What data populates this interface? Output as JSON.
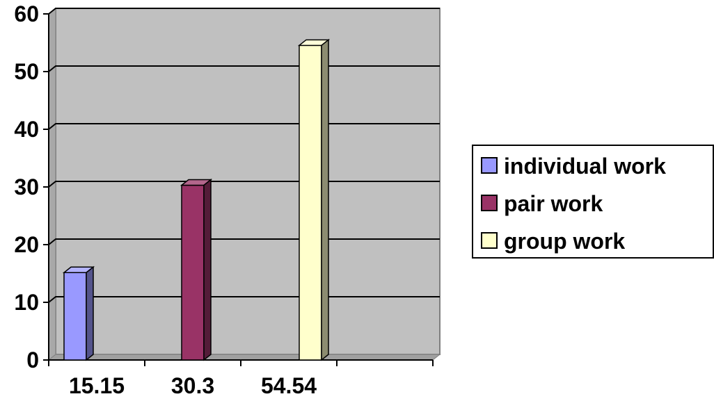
{
  "chart_data": {
    "type": "bar",
    "categories": [
      "15.15",
      "30.3",
      "54.54"
    ],
    "series": [
      {
        "name": "individual work",
        "values": [
          15.15,
          null,
          null
        ],
        "color": "#9999ff"
      },
      {
        "name": "pair work",
        "values": [
          null,
          30.3,
          null
        ],
        "color": "#993366"
      },
      {
        "name": "group work",
        "values": [
          null,
          null,
          54.54
        ],
        "color": "#ffffcc"
      }
    ],
    "ylim": [
      0,
      60
    ],
    "yticks": [
      0,
      10,
      20,
      30,
      40,
      50,
      60
    ],
    "grid": true,
    "three_d": true,
    "plot_background": "#c0c0c0",
    "legend_position": "right",
    "title": "",
    "xlabel": "",
    "ylabel": ""
  }
}
